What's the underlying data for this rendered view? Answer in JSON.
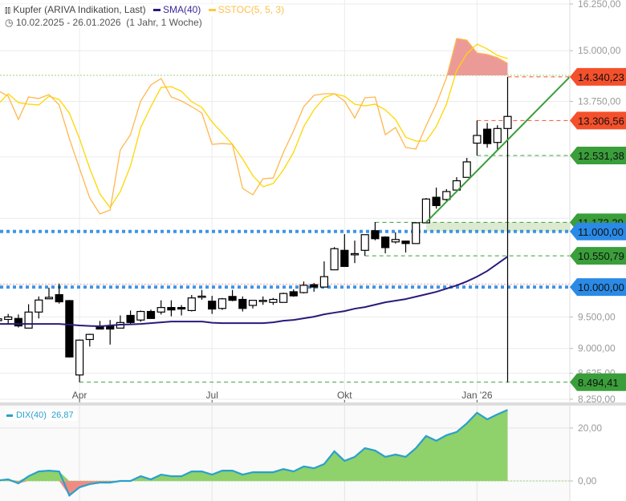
{
  "header": {
    "instrument": "Kupfer (ARIVA Indikation, Last)",
    "sma_label": "SMA(40)",
    "sstoc_label": "SSTOC(5, 5, 3)",
    "date_range": "10.02.2025 - 26.01.2026",
    "period": "(1 Jahr, 1 Woche)"
  },
  "colors": {
    "sma": "#2a1a7a",
    "stoch_k": "#ffb74d",
    "stoch_d": "#ffd700",
    "up_level": "#f4502c",
    "support": "#3a9e3a",
    "round": "#2a8ae6",
    "dix_line": "#2aa0cc",
    "dix_pos": "#8fd16a",
    "dix_neg": "#f28a84"
  },
  "chart_data": [
    {
      "type": "candlestick",
      "title": "Kupfer (ARIVA Indikation, Last)",
      "scale": "log",
      "ylim": [
        8250,
        16250
      ],
      "y_ticks": [
        {
          "value": 16250,
          "label": "16.250,00"
        },
        {
          "value": 15000,
          "label": "15.000,00"
        },
        {
          "value": 13750,
          "label": "13.750,00"
        },
        {
          "value": 9500,
          "label": "9.500,00"
        },
        {
          "value": 9000,
          "label": "9.000,00"
        },
        {
          "value": 8625,
          "label": "8.625,00"
        },
        {
          "value": 8250,
          "label": "8.250,00"
        }
      ],
      "x_ticks": [
        {
          "index": 8,
          "label": "Apr"
        },
        {
          "index": 21,
          "label": "Jul"
        },
        {
          "index": 34,
          "label": "Okt"
        },
        {
          "index": 47,
          "label": "Jan '26"
        }
      ],
      "ohlc": [
        [
          9440,
          9480,
          9420,
          9470
        ],
        [
          9460,
          9550,
          9380,
          9500
        ],
        [
          9475,
          9540,
          9330,
          9355
        ],
        [
          9320,
          9710,
          9320,
          9580
        ],
        [
          9580,
          9840,
          9475,
          9780
        ],
        [
          9800,
          9990,
          9800,
          9825
        ],
        [
          9870,
          10060,
          9720,
          9750
        ],
        [
          9770,
          9780,
          8860,
          8870
        ],
        [
          8600,
          9140,
          8494,
          9130
        ],
        [
          9140,
          9230,
          9030,
          9220
        ],
        [
          9345,
          9435,
          9305,
          9305
        ],
        [
          9355,
          9450,
          9060,
          9305
        ],
        [
          9320,
          9525,
          9320,
          9410
        ],
        [
          9525,
          9605,
          9385,
          9410
        ],
        [
          9450,
          9605,
          9420,
          9590
        ],
        [
          9590,
          9620,
          9475,
          9475
        ],
        [
          9580,
          9775,
          9540,
          9655
        ],
        [
          9655,
          9775,
          9510,
          9615
        ],
        [
          9655,
          9695,
          9525,
          9630
        ],
        [
          9605,
          9865,
          9590,
          9815
        ],
        [
          9835,
          9950,
          9785,
          9845
        ],
        [
          9760,
          9850,
          9550,
          9630
        ],
        [
          9640,
          9815,
          9615,
          9800
        ],
        [
          9840,
          9950,
          9760,
          9775
        ],
        [
          9790,
          9840,
          9590,
          9640
        ],
        [
          9690,
          9775,
          9640,
          9775
        ],
        [
          9760,
          9840,
          9700,
          9775
        ],
        [
          9740,
          9815,
          9700,
          9790
        ],
        [
          9740,
          9905,
          9740,
          9890
        ],
        [
          9920,
          9960,
          9835,
          9850
        ],
        [
          9905,
          10095,
          9890,
          10030
        ],
        [
          10040,
          10070,
          9920,
          10000
        ],
        [
          10000,
          10450,
          10000,
          10180
        ],
        [
          10300,
          10710,
          10300,
          10680
        ],
        [
          10650,
          10950,
          10360,
          10360
        ],
        [
          10570,
          10830,
          10420,
          10590
        ],
        [
          10650,
          10940,
          10550,
          10940
        ],
        [
          11015,
          11180,
          10835,
          10865
        ],
        [
          10895,
          10910,
          10595,
          10700
        ],
        [
          10805,
          10985,
          10775,
          10850
        ],
        [
          10820,
          10820,
          10610,
          10775
        ],
        [
          10775,
          11180,
          10775,
          11165
        ],
        [
          11165,
          11650,
          11165,
          11630
        ],
        [
          11665,
          11860,
          11440,
          11500
        ],
        [
          11620,
          11830,
          11590,
          11780
        ],
        [
          11810,
          12075,
          11810,
          12000
        ],
        [
          12070,
          12480,
          12070,
          12395
        ],
        [
          12800,
          13306,
          12531,
          12970
        ],
        [
          13110,
          13250,
          12700,
          12790
        ],
        [
          12815,
          13200,
          12650,
          13125
        ],
        [
          13125,
          14340,
          8494,
          13400
        ]
      ],
      "sma40": [
        9387,
        9387,
        9387,
        9387,
        9387,
        9387,
        9387,
        9375,
        9362,
        9355,
        9349,
        9362,
        9375,
        9381,
        9387,
        9400,
        9413,
        9426,
        9426,
        9426,
        9426,
        9406,
        9400,
        9400,
        9400,
        9400,
        9400,
        9413,
        9439,
        9452,
        9478,
        9504,
        9543,
        9570,
        9596,
        9636,
        9662,
        9702,
        9742,
        9769,
        9796,
        9836,
        9877,
        9918,
        9973,
        10028,
        10097,
        10180,
        10279,
        10407,
        10537
      ],
      "sstoc_k": [
        71.9,
        68.9,
        56.6,
        68.5,
        67.7,
        69.8,
        64.3,
        46.4,
        30.6,
        14.9,
        6.4,
        8.5,
        40.4,
        48.5,
        66.4,
        74.9,
        78.3,
        68.5,
        66.4,
        63.4,
        60.0,
        43.4,
        43.8,
        43.4,
        20.0,
        16.6,
        25.1,
        25.5,
        39.1,
        50.6,
        63.4,
        69.4,
        70.2,
        70.2,
        66.4,
        57.4,
        68.1,
        68.5,
        48.5,
        52.3,
        41.7,
        40.9,
        53.2,
        64.7,
        78.7,
        99.6,
        98.7,
        91.9,
        91.1,
        89.4,
        86.4
      ],
      "sstoc_d": [
        64.7,
        70.2,
        65.5,
        64.7,
        64.3,
        68.9,
        67.2,
        60.0,
        46.4,
        30.6,
        17.0,
        9.8,
        18.3,
        31.9,
        52.3,
        63.4,
        73.6,
        74.0,
        71.5,
        66.0,
        63.0,
        55.3,
        49.4,
        43.4,
        35.7,
        26.8,
        20.9,
        22.6,
        29.8,
        39.1,
        52.8,
        61.7,
        68.1,
        70.2,
        68.9,
        64.7,
        63.8,
        64.7,
        61.7,
        56.6,
        47.2,
        45.1,
        45.1,
        52.8,
        64.7,
        82.6,
        91.5,
        96.6,
        94.0,
        90.6,
        88.9
      ],
      "sstoc_overbought": 80,
      "levels": [
        {
          "value": 14340.23,
          "label": "14.340,23",
          "kind": "resistance",
          "from_index": 50
        },
        {
          "value": 13306.56,
          "label": "13.306,56",
          "kind": "resistance",
          "from_index": 47
        },
        {
          "value": 12531.38,
          "label": "12.531,38",
          "kind": "support",
          "from_index": 47
        },
        {
          "value": 11173.29,
          "label": "11.173,29",
          "kind": "support",
          "from_index": 37
        },
        {
          "value": 11000,
          "label": "11.000,00",
          "kind": "round",
          "from_index": 0
        },
        {
          "value": 10550.79,
          "label": "10.550,79",
          "kind": "support",
          "from_index": 36
        },
        {
          "value": 10000,
          "label": "10.000,00",
          "kind": "round",
          "from_index": 0
        },
        {
          "value": 8494.41,
          "label": "8.494,41",
          "kind": "support",
          "from_index": 8
        }
      ],
      "zone": {
        "low": 11000,
        "high": 11173.29,
        "from_index": 42
      },
      "trendline": {
        "from_index": 42,
        "from_price": 11173,
        "to_index": 56.1,
        "to_price": 14340
      }
    },
    {
      "type": "area",
      "name": "DIX(40)",
      "legend_label": "DIX(40)",
      "last_value": "26,87",
      "ylim": [
        -7.5,
        29
      ],
      "y_ticks": [
        {
          "value": 20,
          "label": "20,00"
        },
        {
          "value": 0,
          "label": "0,00"
        }
      ],
      "values": [
        0.2,
        0.6,
        -0.9,
        1.8,
        3.6,
        3.9,
        3.6,
        -5.5,
        -2.4,
        -1.2,
        -0.6,
        -0.6,
        0,
        0,
        1.8,
        0.6,
        2.4,
        1.8,
        1.8,
        3.6,
        3.6,
        2.4,
        3.9,
        3.9,
        2.4,
        3.3,
        3.3,
        3.3,
        4.5,
        3.6,
        5.5,
        4.8,
        6.4,
        11.2,
        7.6,
        9.1,
        12.4,
        11.5,
        9.1,
        10.0,
        9.1,
        12.4,
        17.0,
        15.2,
        17.3,
        18.5,
        21.8,
        25.8,
        23.3,
        25.2,
        26.87
      ]
    }
  ]
}
